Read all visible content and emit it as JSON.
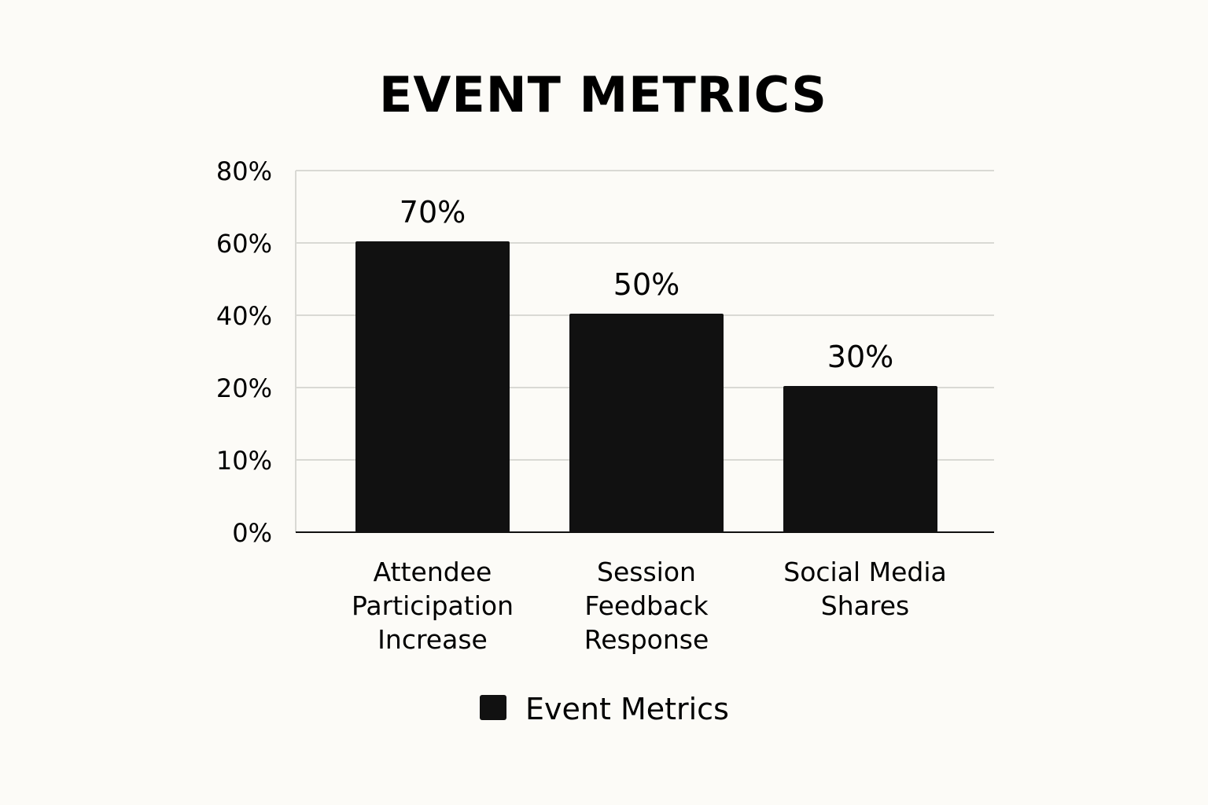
{
  "chart_data": {
    "type": "bar",
    "title": "EVENT METRICS",
    "categories": [
      [
        "Attendee",
        "Participation",
        "Increase"
      ],
      [
        "Session",
        "Feedback",
        "Response"
      ],
      [
        "Social Media",
        "Shares"
      ]
    ],
    "values": [
      70,
      50,
      30
    ],
    "data_labels": [
      "70%",
      "50%",
      "30%"
    ],
    "bar_axis_values": [
      60,
      40,
      20
    ],
    "yticks": [
      0,
      10,
      20,
      40,
      60,
      80
    ],
    "ytick_labels": [
      "0%",
      "10%",
      "20%",
      "40%",
      "60%",
      "80%"
    ],
    "xlabel": "",
    "ylabel": "",
    "grid": true,
    "legend": {
      "label": "Event Metrics",
      "placement": "bottom"
    },
    "bar_color": "#111111",
    "grid_color": "#d9d9d4"
  }
}
